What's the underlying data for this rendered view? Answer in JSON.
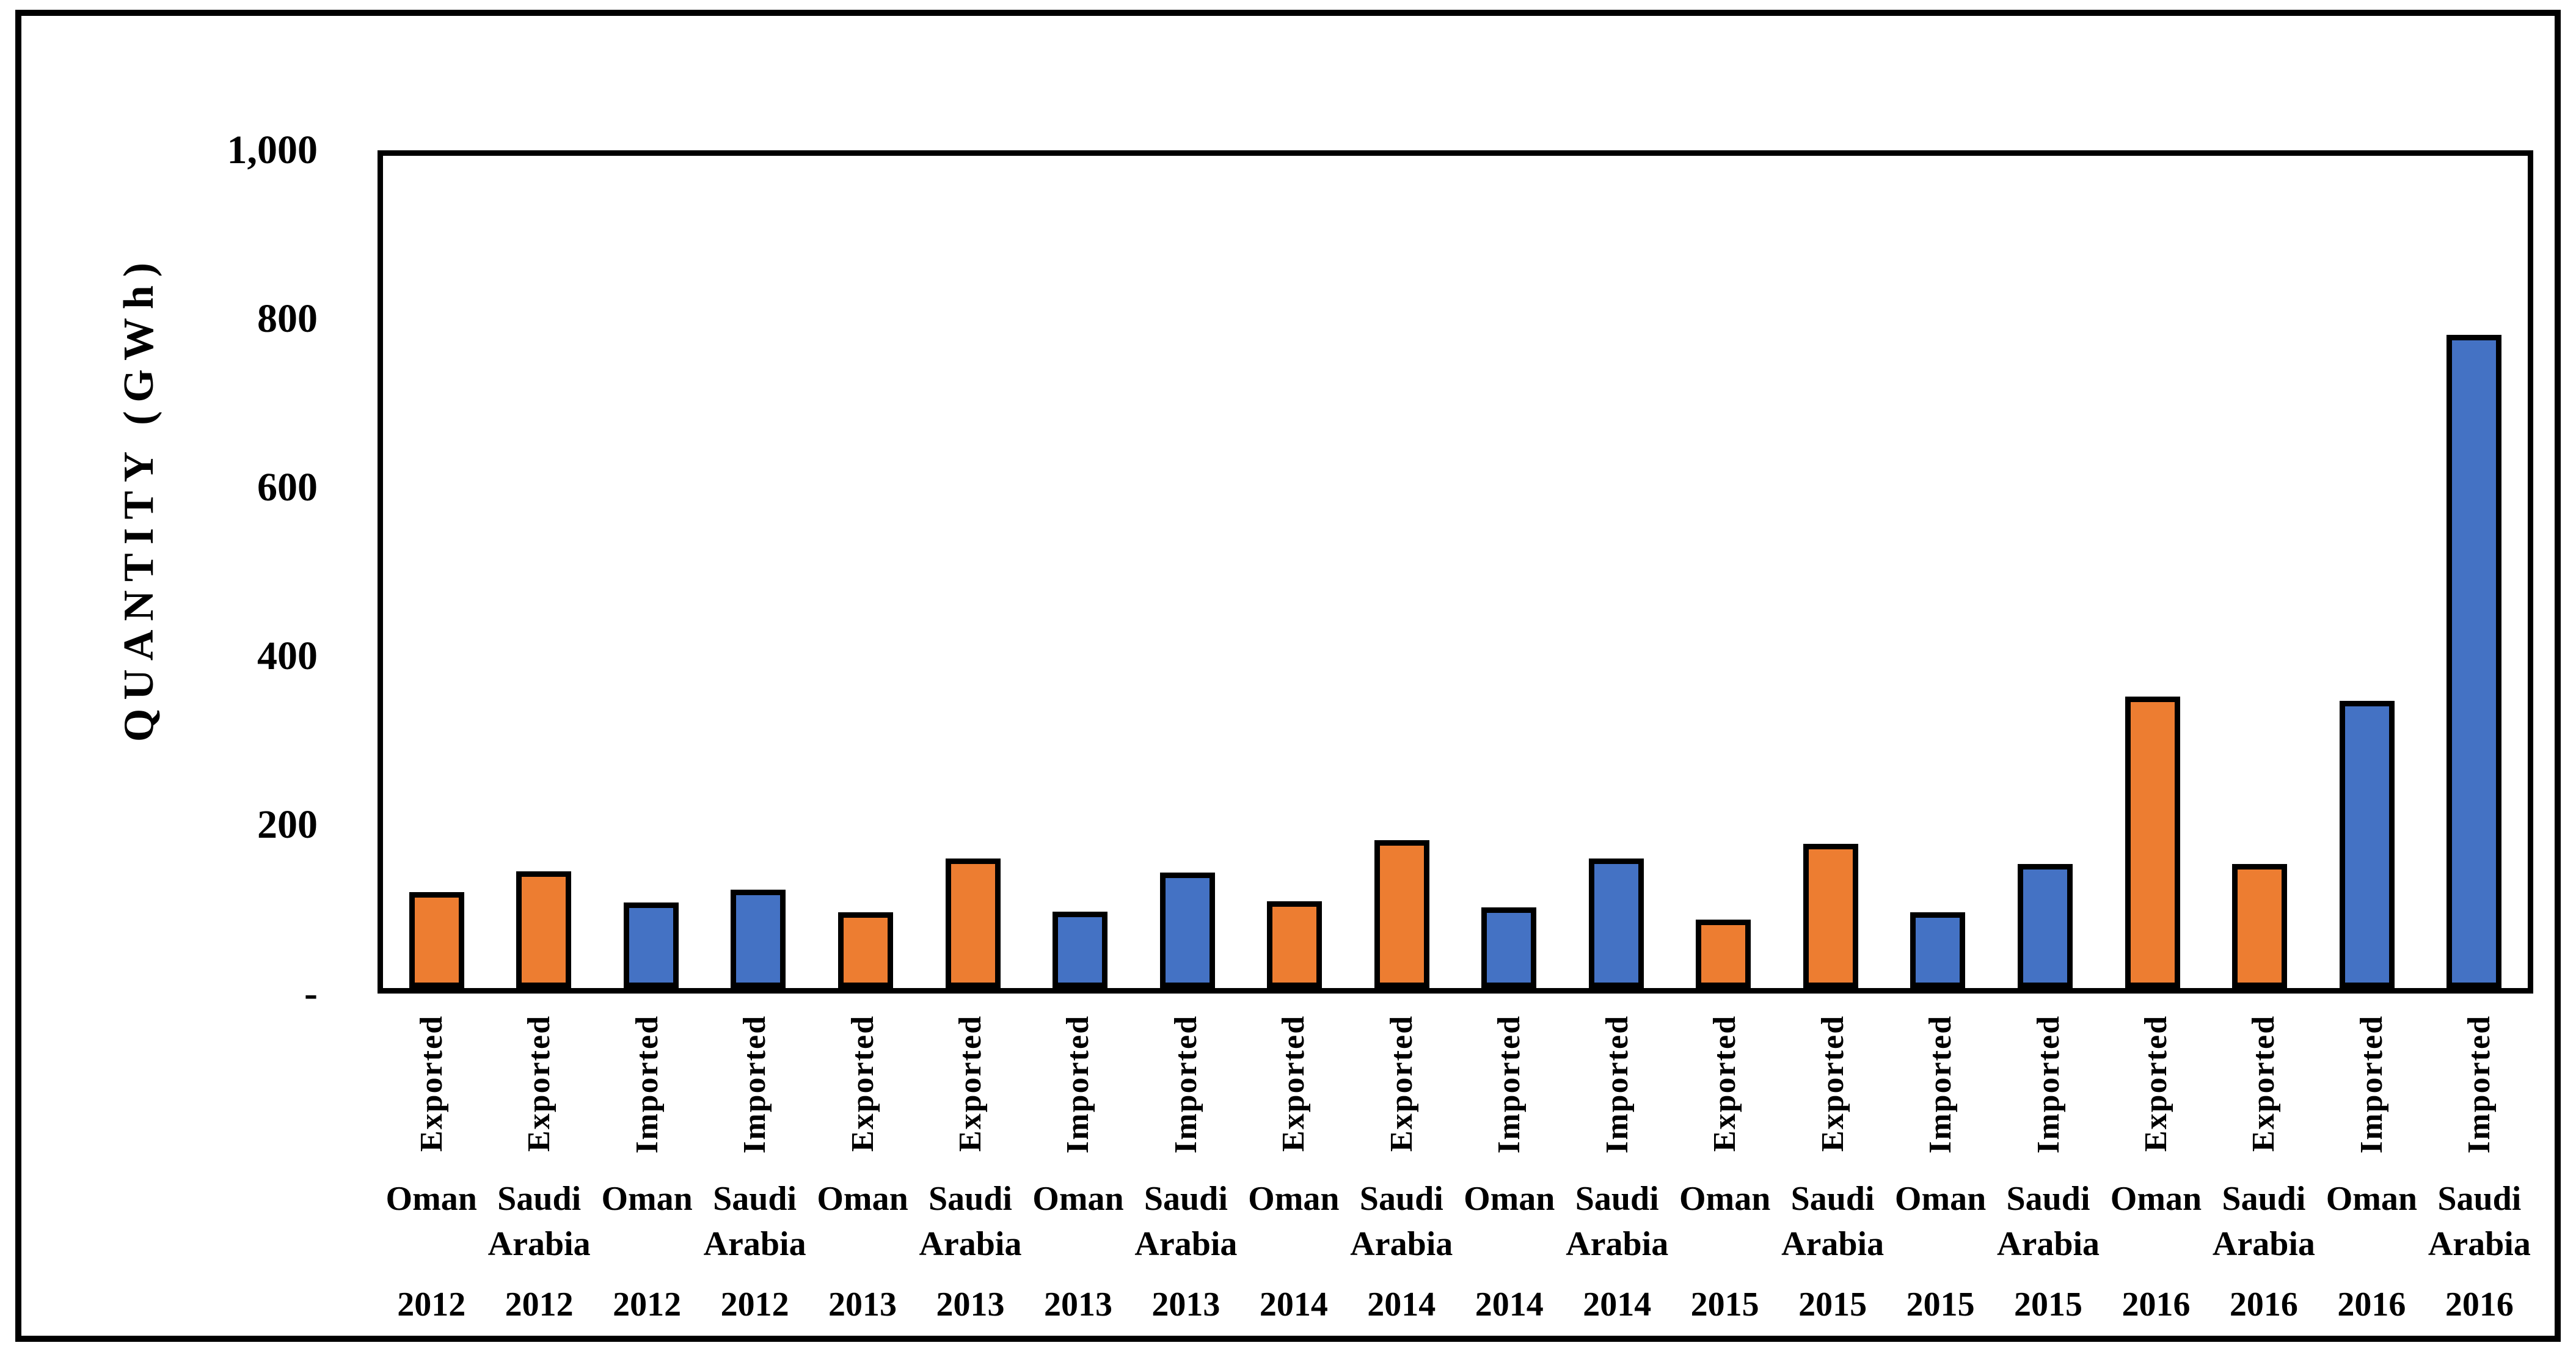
{
  "figure": {
    "background": "#FFFFFF",
    "border_color": "#000000"
  },
  "chart_data": {
    "type": "bar",
    "title": "",
    "xlabel": "",
    "ylabel": "QUANTITY (GWh)",
    "ylim": [
      0,
      1000
    ],
    "grid": false,
    "legend_position": "none",
    "bar_outline_color": "#000000",
    "series_colors": {
      "Exported": "#ED7D31",
      "Imported": "#4472C4"
    },
    "y_ticks": [
      {
        "label": "1,000",
        "value": 1000
      },
      {
        "label": "800",
        "value": 800
      },
      {
        "label": "600",
        "value": 600
      },
      {
        "label": "400",
        "value": 400
      },
      {
        "label": "200",
        "value": 200
      },
      {
        "label": "-",
        "value": 0
      }
    ],
    "bars": [
      {
        "flow": "Exported",
        "country": "Oman",
        "year": "2012",
        "value": 115
      },
      {
        "flow": "Exported",
        "country": "Saudi Arabia",
        "year": "2012",
        "value": 140
      },
      {
        "flow": "Imported",
        "country": "Oman",
        "year": "2012",
        "value": 103
      },
      {
        "flow": "Imported",
        "country": "Saudi Arabia",
        "year": "2012",
        "value": 118
      },
      {
        "flow": "Exported",
        "country": "Oman",
        "year": "2013",
        "value": 91
      },
      {
        "flow": "Exported",
        "country": "Saudi Arabia",
        "year": "2013",
        "value": 156
      },
      {
        "flow": "Imported",
        "country": "Oman",
        "year": "2013",
        "value": 92
      },
      {
        "flow": "Imported",
        "country": "Saudi Arabia",
        "year": "2013",
        "value": 139
      },
      {
        "flow": "Exported",
        "country": "Oman",
        "year": "2014",
        "value": 104
      },
      {
        "flow": "Exported",
        "country": "Saudi Arabia",
        "year": "2014",
        "value": 178
      },
      {
        "flow": "Imported",
        "country": "Oman",
        "year": "2014",
        "value": 97
      },
      {
        "flow": "Imported",
        "country": "Saudi Arabia",
        "year": "2014",
        "value": 156
      },
      {
        "flow": "Exported",
        "country": "Oman",
        "year": "2015",
        "value": 82
      },
      {
        "flow": "Exported",
        "country": "Saudi Arabia",
        "year": "2015",
        "value": 173
      },
      {
        "flow": "Imported",
        "country": "Oman",
        "year": "2015",
        "value": 91
      },
      {
        "flow": "Imported",
        "country": "Saudi Arabia",
        "year": "2015",
        "value": 149
      },
      {
        "flow": "Exported",
        "country": "Oman",
        "year": "2016",
        "value": 350
      },
      {
        "flow": "Exported",
        "country": "Saudi Arabia",
        "year": "2016",
        "value": 149
      },
      {
        "flow": "Imported",
        "country": "Oman",
        "year": "2016",
        "value": 345
      },
      {
        "flow": "Imported",
        "country": "Saudi Arabia",
        "year": "2016",
        "value": 785
      }
    ]
  }
}
